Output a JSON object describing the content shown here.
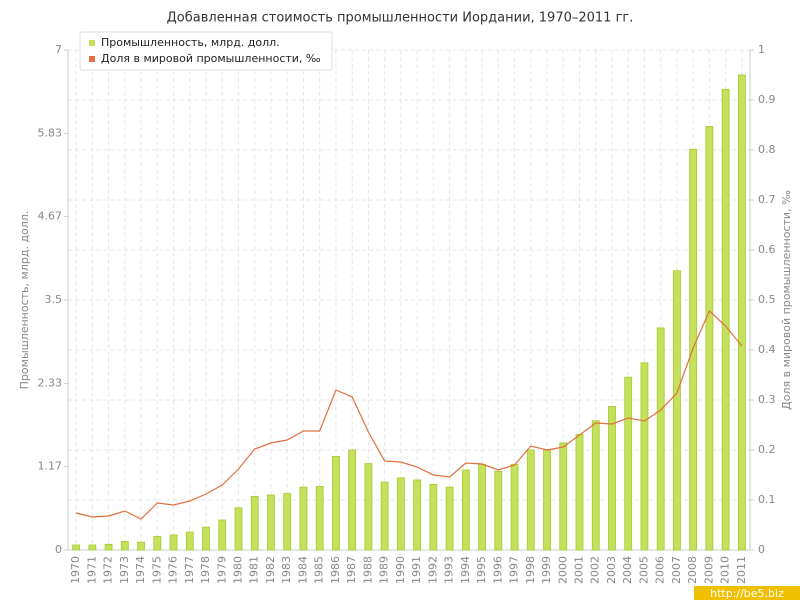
{
  "chart_data": {
    "type": "bar_line",
    "title": "Добавленная стоимость промышленности Иордании, 1970–2011 гг.",
    "y_label": "Промышленность, млрд. долл.",
    "y2_label": "Доля в мировой промышленности, ‰",
    "watermark": "http://be5.biz",
    "categories": [
      "1970",
      "1971",
      "1972",
      "1973",
      "1974",
      "1975",
      "1976",
      "1977",
      "1978",
      "1979",
      "1980",
      "1981",
      "1982",
      "1983",
      "1984",
      "1985",
      "1986",
      "1987",
      "1988",
      "1989",
      "1990",
      "1991",
      "1992",
      "1993",
      "1994",
      "1995",
      "1996",
      "1997",
      "1998",
      "1999",
      "2000",
      "2001",
      "2002",
      "2003",
      "2004",
      "2005",
      "2006",
      "2007",
      "2008",
      "2009",
      "2010",
      "2011"
    ],
    "series": [
      {
        "name": "Промышленность, млрд. долл.",
        "color": "#c5e05a",
        "type": "bar",
        "values": [
          0.07,
          0.07,
          0.08,
          0.12,
          0.11,
          0.19,
          0.21,
          0.25,
          0.32,
          0.42,
          0.59,
          0.75,
          0.77,
          0.79,
          0.88,
          0.89,
          1.31,
          1.4,
          1.21,
          0.95,
          1.01,
          0.98,
          0.92,
          0.88,
          1.12,
          1.2,
          1.1,
          1.2,
          1.4,
          1.4,
          1.5,
          1.62,
          1.81,
          2.01,
          2.42,
          2.62,
          3.11,
          3.91,
          5.61,
          5.93,
          6.45,
          6.65
        ]
      },
      {
        "name": "Доля в мировой промышленности, ‰",
        "color": "#e07040",
        "type": "line",
        "axis": "y2",
        "values": [
          0.074,
          0.066,
          0.068,
          0.078,
          0.062,
          0.094,
          0.09,
          0.098,
          0.112,
          0.13,
          0.162,
          0.202,
          0.214,
          0.22,
          0.238,
          0.238,
          0.32,
          0.306,
          0.236,
          0.178,
          0.176,
          0.166,
          0.15,
          0.146,
          0.174,
          0.172,
          0.16,
          0.17,
          0.208,
          0.2,
          0.206,
          0.23,
          0.254,
          0.252,
          0.264,
          0.258,
          0.28,
          0.314,
          0.404,
          0.478,
          0.448,
          0.408
        ]
      }
    ],
    "ylim": [
      0,
      7
    ],
    "yticks": [
      0,
      1.17,
      2.33,
      3.5,
      4.67,
      5.83,
      7
    ],
    "y2lim": [
      0,
      1
    ],
    "y2ticks": [
      0,
      0.1,
      0.2,
      0.3,
      0.4,
      0.5,
      0.6,
      0.7,
      0.8,
      0.9,
      1
    ],
    "grid": true,
    "legend": "top-left"
  }
}
